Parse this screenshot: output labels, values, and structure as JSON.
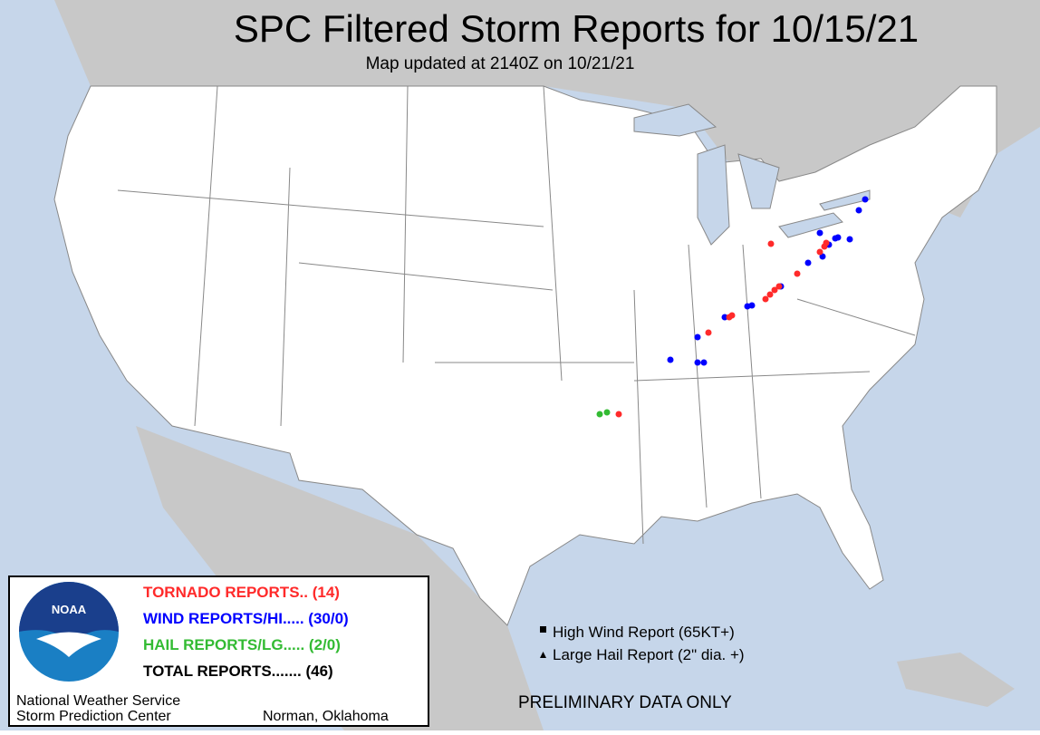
{
  "header": {
    "title": "SPC Filtered Storm Reports for 10/15/21",
    "subtitle": "Map updated at 2140Z on 10/21/21"
  },
  "legend": {
    "logo": "NOAA",
    "rows": [
      "TORNADO REPORTS.. (14)",
      "WIND REPORTS/HI..... (30/0)",
      "HAIL REPORTS/LG..... (2/0)",
      "TOTAL REPORTS....... (46)"
    ],
    "footer_left": [
      "National Weather Service",
      "Storm Prediction Center"
    ],
    "footer_right": "Norman, Oklahoma"
  },
  "key": [
    "High Wind Report (65KT+)",
    "Large Hail Report (2\" dia. +)"
  ],
  "notice": "PRELIMINARY DATA ONLY"
}
